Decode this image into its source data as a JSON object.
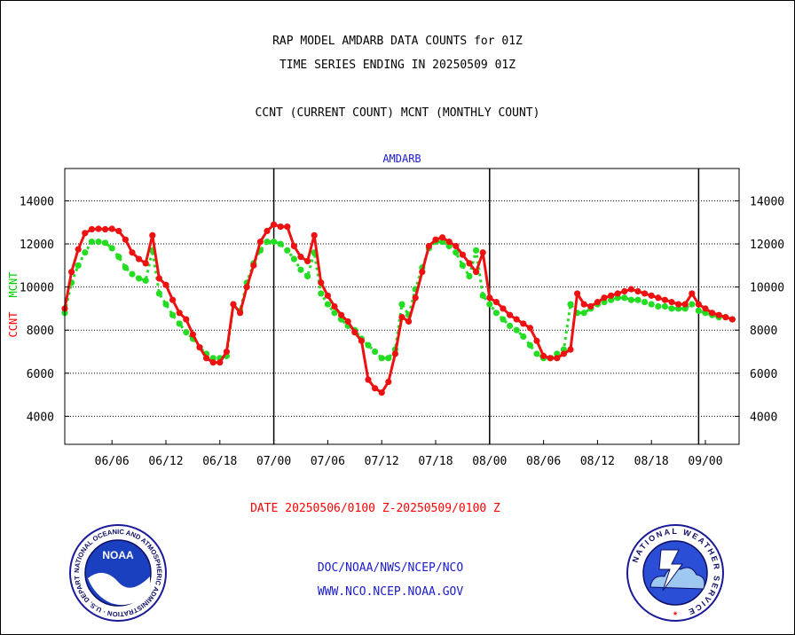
{
  "header": {
    "title_line1": "RAP MODEL AMDARB DATA COUNTS for 01Z",
    "title_line2": "TIME SERIES ENDING IN 20250509 01Z",
    "subtitle": "CCNT (CURRENT COUNT) MCNT (MONTHLY COUNT)"
  },
  "footer": {
    "date_range": "DATE 20250506/0100 Z-20250509/0100 Z",
    "credit_line1": "DOC/NOAA/NWS/NCEP/NCO",
    "credit_line2": "WWW.NCO.NCEP.NOAA.GOV"
  },
  "logos": {
    "noaa": {
      "center_text": "NOAA",
      "ring_text": "NATIONAL OCEANIC AND ATMOSPHERIC ADMINISTRATION · U.S. DEPARTMENT OF COMMERCE"
    },
    "nws": {
      "ring_text": "NATIONAL WEATHER SERVICE"
    }
  },
  "chart_data": {
    "type": "line",
    "title": "AMDARB",
    "ylabel_left": "CCNT",
    "ylabel_left_2": "MCNT",
    "ylim": [
      2700,
      15500
    ],
    "yticks": [
      4000,
      6000,
      8000,
      10000,
      12000,
      14000
    ],
    "ytick_labels": [
      "4000",
      "6000",
      "8000",
      "10000",
      "12000",
      "14000"
    ],
    "xlim": [
      -1,
      99
    ],
    "xticks": [
      6,
      14,
      22,
      30,
      38,
      46,
      54,
      62,
      70,
      78,
      86,
      94
    ],
    "xtick_labels": [
      "06/06",
      "06/12",
      "06/18",
      "07/00",
      "07/06",
      "07/12",
      "07/18",
      "08/00",
      "08/06",
      "08/12",
      "08/18",
      "09/00"
    ],
    "day_boundaries": [
      30,
      62,
      93
    ],
    "grid": true,
    "colors": {
      "ccnt": "#ee1111",
      "mcnt": "#22dd22",
      "title": "#1a1acc",
      "ylabel_left": "#ff0000",
      "ylabel_left_2": "#00cc00"
    },
    "x": [
      -1,
      0,
      1,
      2,
      3,
      4,
      5,
      6,
      7,
      8,
      9,
      10,
      11,
      12,
      13,
      14,
      15,
      16,
      17,
      18,
      19,
      20,
      21,
      22,
      23,
      24,
      25,
      26,
      27,
      28,
      29,
      30,
      31,
      32,
      33,
      34,
      35,
      36,
      37,
      38,
      39,
      40,
      41,
      42,
      43,
      44,
      45,
      46,
      47,
      48,
      49,
      50,
      51,
      52,
      53,
      54,
      55,
      56,
      57,
      58,
      59,
      60,
      61,
      62,
      63,
      64,
      65,
      66,
      67,
      68,
      69,
      70,
      71,
      72,
      73,
      74,
      75,
      76,
      77,
      78,
      79,
      80,
      81,
      82,
      83,
      84,
      85,
      86,
      87,
      88,
      89,
      90,
      91,
      92,
      93,
      94,
      95,
      96,
      97,
      98
    ],
    "series": [
      {
        "name": "CCNT",
        "values": [
          9000,
          10700,
          11750,
          12500,
          12680,
          12700,
          12680,
          12700,
          12600,
          12200,
          11600,
          11300,
          11100,
          12400,
          10400,
          10100,
          9400,
          8800,
          8500,
          7800,
          7200,
          6700,
          6500,
          6500,
          7000,
          9200,
          8800,
          10000,
          11000,
          12100,
          12600,
          12900,
          12800,
          12800,
          11900,
          11400,
          11200,
          12400,
          10200,
          9600,
          9100,
          8700,
          8400,
          7900,
          7500,
          5700,
          5300,
          5100,
          5600,
          6900,
          8600,
          8400,
          9500,
          10700,
          11900,
          12200,
          12300,
          12100,
          11900,
          11500,
          11100,
          10700,
          11600,
          9500,
          9300,
          9000,
          8700,
          8500,
          8300,
          8100,
          7500,
          6800,
          6700,
          6700,
          6900,
          7100,
          9700,
          9200,
          9100,
          9300,
          9500,
          9600,
          9700,
          9800,
          9900,
          9800,
          9700,
          9600,
          9500,
          9400,
          9300,
          9200,
          9200,
          9700,
          9200,
          9000,
          8800,
          8700,
          8600,
          8500
        ]
      },
      {
        "name": "MCNT",
        "values": [
          8800,
          10200,
          11000,
          11600,
          12100,
          12100,
          12050,
          11800,
          11400,
          10900,
          10600,
          10400,
          10300,
          11700,
          9700,
          9200,
          8700,
          8300,
          7900,
          7600,
          7200,
          6900,
          6700,
          6700,
          6800,
          9200,
          8900,
          10200,
          11100,
          11700,
          12100,
          12100,
          12000,
          11700,
          11300,
          10800,
          10500,
          11600,
          9700,
          9200,
          8800,
          8500,
          8200,
          8000,
          7600,
          7300,
          7000,
          6700,
          6700,
          7100,
          9200,
          8700,
          9900,
          10900,
          11800,
          12100,
          12100,
          11900,
          11600,
          11000,
          10500,
          11700,
          9600,
          9200,
          8800,
          8500,
          8200,
          8000,
          7700,
          7300,
          6900,
          6700,
          6700,
          6900,
          7100,
          9200,
          8800,
          8800,
          9000,
          9200,
          9300,
          9400,
          9500,
          9500,
          9400,
          9400,
          9300,
          9200,
          9100,
          9100,
          9000,
          9000,
          9000,
          9200,
          8900,
          8800,
          8700,
          8600,
          8600,
          8500
        ]
      }
    ]
  }
}
